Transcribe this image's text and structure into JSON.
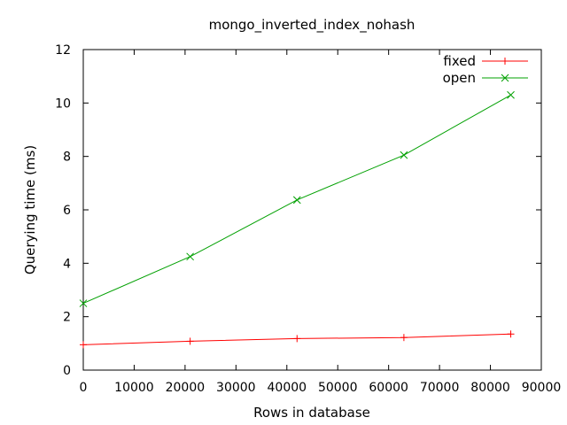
{
  "chart_data": {
    "type": "line",
    "title": "mongo_inverted_index_nohash",
    "xlabel": "Rows in database",
    "ylabel": "Querying time (ms)",
    "xlim": [
      0,
      90000
    ],
    "ylim": [
      0,
      12
    ],
    "x_ticks": [
      0,
      10000,
      20000,
      30000,
      40000,
      50000,
      60000,
      70000,
      80000,
      90000
    ],
    "y_ticks": [
      0,
      2,
      4,
      6,
      8,
      10,
      12
    ],
    "grid": false,
    "legend_position": "top-right",
    "series": [
      {
        "name": "fixed",
        "color": "#ff0000",
        "marker": "plus",
        "x": [
          0,
          21000,
          42000,
          63000,
          84000
        ],
        "y": [
          0.95,
          1.08,
          1.18,
          1.22,
          1.35
        ]
      },
      {
        "name": "open",
        "color": "#00a000",
        "marker": "cross",
        "x": [
          0,
          21000,
          42000,
          63000,
          84000
        ],
        "y": [
          2.5,
          4.25,
          6.37,
          8.05,
          10.3
        ]
      }
    ]
  }
}
